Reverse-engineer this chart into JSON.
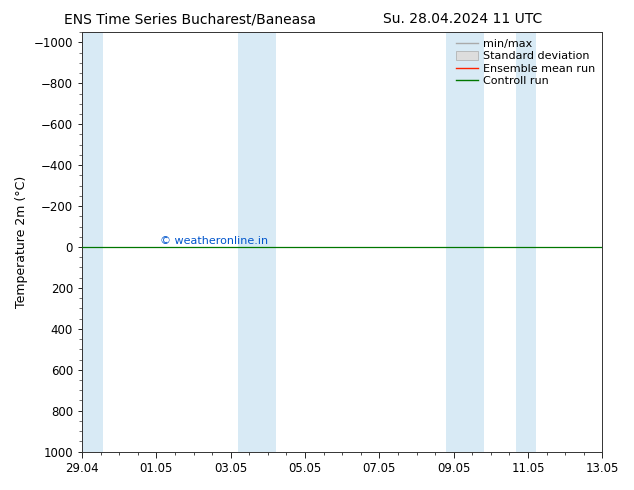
{
  "title_left": "ENS Time Series Bucharest/Baneasa",
  "title_right": "Su. 28.04.2024 11 UTC",
  "ylabel": "Temperature 2m (°C)",
  "ylim_bottom": 1000,
  "ylim_top": -1050,
  "yticks": [
    -1000,
    -800,
    -600,
    -400,
    -200,
    0,
    200,
    400,
    600,
    800,
    1000
  ],
  "xlabel_dates": [
    "29.04",
    "01.05",
    "03.05",
    "05.05",
    "07.05",
    "09.05",
    "11.05",
    "13.05"
  ],
  "xmin": 0,
  "xmax": 15,
  "blue_bands": [
    [
      0.0,
      0.6
    ],
    [
      4.5,
      5.6
    ],
    [
      10.5,
      11.6
    ],
    [
      12.5,
      13.1
    ]
  ],
  "green_line_y": 0,
  "copyright_text": "© weatheronline.in",
  "legend_items": [
    "min/max",
    "Standard deviation",
    "Ensemble mean run",
    "Controll run"
  ],
  "background_color": "#ffffff",
  "band_color": "#d8eaf5",
  "title_fontsize": 10,
  "axis_label_fontsize": 9,
  "tick_fontsize": 8.5,
  "legend_fontsize": 8
}
